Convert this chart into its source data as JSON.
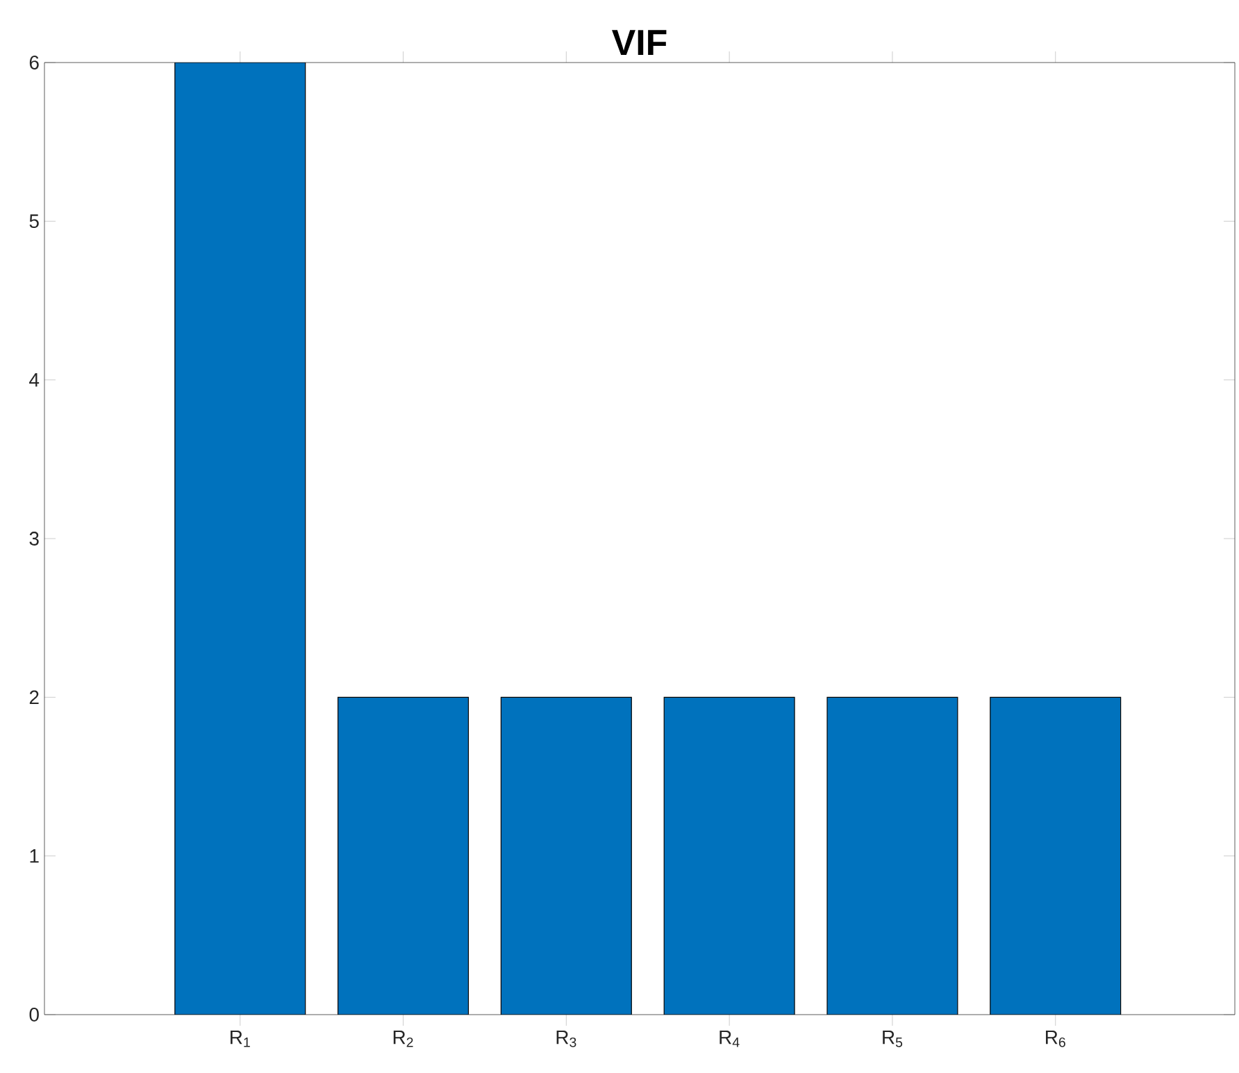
{
  "chart_data": {
    "type": "bar",
    "title": "VIF",
    "categories": [
      "R$_{1}$",
      "R$_{2}$",
      "R$_{3}$",
      "R$_{4}$",
      "R$_{5}$",
      "R$_{6}$"
    ],
    "values": [
      6,
      2,
      2,
      2,
      2,
      2
    ],
    "color": "#0072bd",
    "ylim": [
      0,
      6
    ],
    "yticks": [
      0,
      1,
      2,
      3,
      4,
      5,
      6
    ],
    "grid": false
  }
}
